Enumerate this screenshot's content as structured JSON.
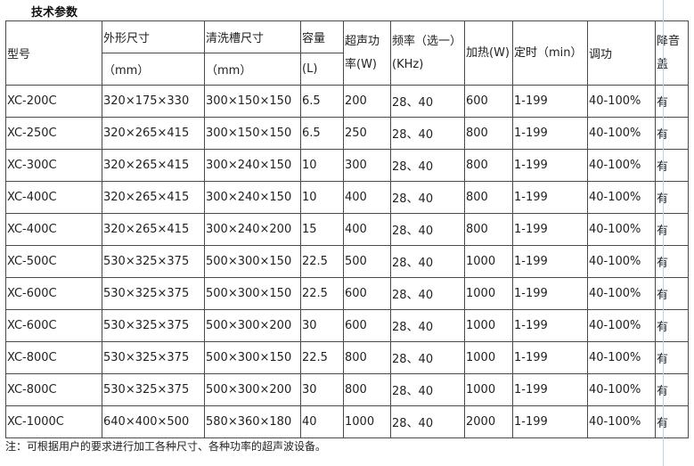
{
  "title": "技术参数",
  "headers": {
    "model": "型号",
    "outer_size": "外形尺寸",
    "outer_size_unit": "（mm）",
    "tank_size": "清洗槽尺寸",
    "tank_size_unit": "（mm）",
    "capacity": "容量",
    "capacity_unit": "(L)",
    "ultrasonic_power": "超声功率(W)",
    "frequency": "频率（选一）(KHz)",
    "heating": "加热(W)",
    "timer": "定时（min）",
    "power_adjust": "调功",
    "noise_cover": "降音盖"
  },
  "rows": [
    [
      "XC-200C",
      "320×175×330",
      "300×150×150",
      "6.5",
      "200",
      "28、40",
      "600",
      "1-199",
      "40-100%",
      "有"
    ],
    [
      "XC-250C",
      "320×265×415",
      "300×150×150",
      "6.5",
      "250",
      "28、40",
      "800",
      "1-199",
      "40-100%",
      "有"
    ],
    [
      "XC-300C",
      "320×265×415",
      "300×240×150",
      "10",
      "300",
      "28、40",
      "800",
      "1-199",
      "40-100%",
      "有"
    ],
    [
      "XC-400C",
      "320×265×415",
      "300×240×150",
      "10",
      "400",
      "28、40",
      "800",
      "1-199",
      "40-100%",
      "有"
    ],
    [
      "XC-400C",
      "320×265×415",
      "300×240×200",
      "15",
      "400",
      "28、40",
      "800",
      "1-199",
      "40-100%",
      "有"
    ],
    [
      "XC-500C",
      "530×325×375",
      "500×300×150",
      "22.5",
      "500",
      "28、40",
      "1000",
      "1-199",
      "40-100%",
      "有"
    ],
    [
      "XC-600C",
      "530×325×375",
      "500×300×150",
      "22.5",
      "600",
      "28、40",
      "1000",
      "1-199",
      "40-100%",
      "有"
    ],
    [
      "XC-600C",
      "530×325×375",
      "500×300×200",
      "30",
      "600",
      "28、40",
      "1000",
      "1-199",
      "40-100%",
      "有"
    ],
    [
      "XC-800C",
      "530×325×375",
      "500×300×150",
      "22.5",
      "800",
      "28、40",
      "1000",
      "1-199",
      "40-100%",
      "有"
    ],
    [
      "XC-800C",
      "530×325×375",
      "500×300×200",
      "30",
      "800",
      "28、40",
      "1000",
      "1-199",
      "40-100%",
      "有"
    ],
    [
      "XC-1000C",
      "640×400×500",
      "580×360×180",
      "40",
      "1000",
      "28、40",
      "2000",
      "1-199",
      "40-100%",
      "有"
    ]
  ],
  "note": "注：可根据用户的要求进行加工各种尺寸、各种功率的超声波设备。"
}
